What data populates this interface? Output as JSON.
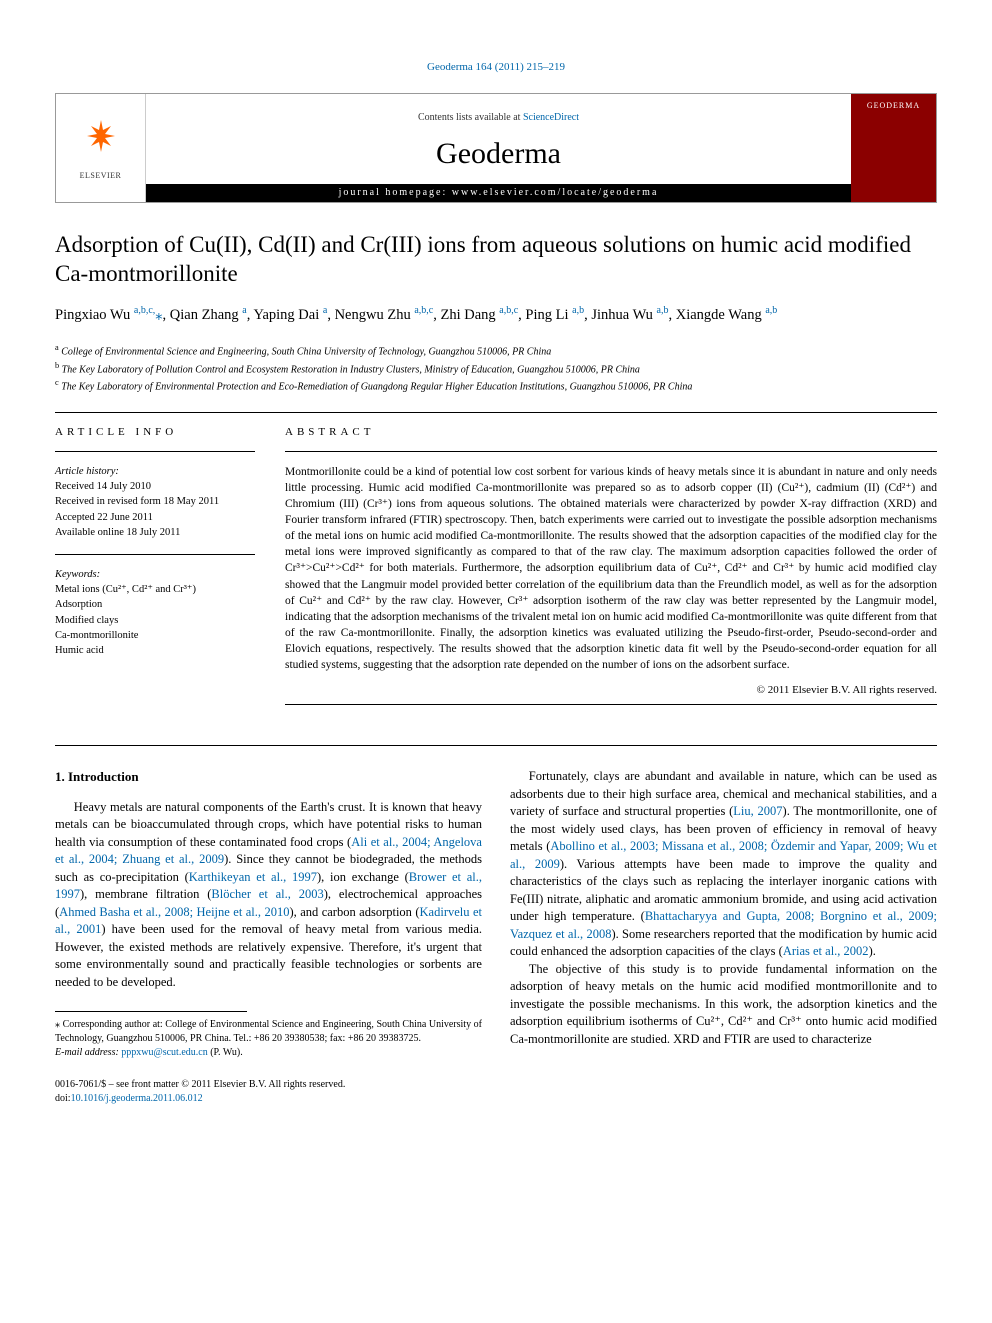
{
  "topLink": {
    "text": "Geoderma 164 (2011) 215–219",
    "href": "#"
  },
  "masthead": {
    "elsevier": "ELSEVIER",
    "contentsPrefix": "Contents lists available at ",
    "contentsLinkText": "ScienceDirect",
    "journal": "Geoderma",
    "homepageLabel": "journal homepage: www.elsevier.com/locate/geoderma",
    "coverLabel": "GEODERMA"
  },
  "title": "Adsorption of Cu(II), Cd(II) and Cr(III) ions from aqueous solutions on humic acid modified Ca-montmorillonite",
  "authorsHtml": "Pingxiao Wu <sup><a href=\"#\">a,b,c,</a></sup><a href=\"#\">⁎</a>, Qian Zhang <sup><a href=\"#\">a</a></sup>, Yaping Dai <sup><a href=\"#\">a</a></sup>, Nengwu Zhu <sup><a href=\"#\">a,b,c</a></sup>, Zhi Dang <sup><a href=\"#\">a,b,c</a></sup>, Ping Li <sup><a href=\"#\">a,b</a></sup>, Jinhua Wu <sup><a href=\"#\">a,b</a></sup>, Xiangde Wang <sup><a href=\"#\">a,b</a></sup>",
  "affiliations": [
    {
      "sup": "a",
      "text": "College of Environmental Science and Engineering, South China University of Technology, Guangzhou 510006, PR China"
    },
    {
      "sup": "b",
      "text": "The Key Laboratory of Pollution Control and Ecosystem Restoration in Industry Clusters, Ministry of Education, Guangzhou 510006, PR China"
    },
    {
      "sup": "c",
      "text": "The Key Laboratory of Environmental Protection and Eco-Remediation of Guangdong Regular Higher Education Institutions, Guangzhou 510006, PR China"
    }
  ],
  "articleInfo": {
    "label": "ARTICLE INFO",
    "historyHeading": "Article history:",
    "history": [
      "Received 14 July 2010",
      "Received in revised form 18 May 2011",
      "Accepted 22 June 2011",
      "Available online 18 July 2011"
    ],
    "keywordsHeading": "Keywords:",
    "keywords": [
      "Metal ions (Cu²⁺, Cd²⁺ and Cr³⁺)",
      "Adsorption",
      "Modified clays",
      "Ca-montmorillonite",
      "Humic acid"
    ]
  },
  "abstract": {
    "label": "ABSTRACT",
    "text": "Montmorillonite could be a kind of potential low cost sorbent for various kinds of heavy metals since it is abundant in nature and only needs little processing. Humic acid modified Ca-montmorillonite was prepared so as to adsorb copper (II) (Cu²⁺), cadmium (II) (Cd²⁺) and Chromium (III) (Cr³⁺) ions from aqueous solutions. The obtained materials were characterized by powder X-ray diffraction (XRD) and Fourier transform infrared (FTIR) spectroscopy. Then, batch experiments were carried out to investigate the possible adsorption mechanisms of the metal ions on humic acid modified Ca-montmorillonite. The results showed that the adsorption capacities of the modified clay for the metal ions were improved significantly as compared to that of the raw clay. The maximum adsorption capacities followed the order of Cr³⁺>Cu²⁺>Cd²⁺ for both materials. Furthermore, the adsorption equilibrium data of Cu²⁺, Cd²⁺ and Cr³⁺ by humic acid modified clay showed that the Langmuir model provided better correlation of the equilibrium data than the Freundlich model, as well as for the adsorption of Cu²⁺ and Cd²⁺ by the raw clay. However, Cr³⁺ adsorption isotherm of the raw clay was better represented by the Langmuir model, indicating that the adsorption mechanisms of the trivalent metal ion on humic acid modified Ca-montmorillonite was quite different from that of the raw Ca-montmorillonite. Finally, the adsorption kinetics was evaluated utilizing the Pseudo-first-order, Pseudo-second-order and Elovich equations, respectively. The results showed that the adsorption kinetic data fit well by the Pseudo-second-order equation for all studied systems, suggesting that the adsorption rate depended on the number of ions on the adsorbent surface.",
    "copyright": "© 2011 Elsevier B.V. All rights reserved."
  },
  "intro": {
    "heading": "1. Introduction",
    "leftHtml": "Heavy metals are natural components of the Earth's crust. It is known that heavy metals can be bioaccumulated through crops, which have potential risks to human health via consumption of these contaminated food crops (<a href=\"#\">Ali et al., 2004; Angelova et al., 2004; Zhuang et al., 2009</a>). Since they cannot be biodegraded, the methods such as co-precipitation (<a href=\"#\">Karthikeyan et al., 1997</a>), ion exchange (<a href=\"#\">Brower et al., 1997</a>), membrane filtration (<a href=\"#\">Blöcher et al., 2003</a>), electrochemical approaches (<a href=\"#\">Ahmed Basha et al., 2008; Heijne et al., 2010</a>), and carbon adsorption (<a href=\"#\">Kadirvelu et al., 2001</a>) have been used for the removal of heavy metal from various media. However, the existed methods are relatively expensive. Therefore, it's urgent that some environmentally sound and practically feasible technologies or sorbents are needed to be developed.",
    "right1Html": "Fortunately, clays are abundant and available in nature, which can be used as adsorbents due to their high surface area, chemical and mechanical stabilities, and a variety of surface and structural properties (<a href=\"#\">Liu, 2007</a>). The montmorillonite, one of the most widely used clays, has been proven of efficiency in removal of heavy metals (<a href=\"#\">Abollino et al., 2003; Missana et al., 2008; Özdemir and Yapar, 2009; Wu et al., 2009</a>). Various attempts have been made to improve the quality and characteristics of the clays such as replacing the interlayer inorganic cations with Fe(III) nitrate, aliphatic and aromatic ammonium bromide, and using acid activation under high temperature. (<a href=\"#\">Bhattacharyya and Gupta, 2008; Borgnino et al., 2009; Vazquez et al., 2008</a>). Some researchers reported that the modification by humic acid could enhanced the adsorption capacities of the clays (<a href=\"#\">Arias et al., 2002</a>).",
    "right2Html": "The objective of this study is to provide fundamental information on the adsorption of heavy metals on the humic acid modified montmorillonite and to investigate the possible mechanisms. In this work, the adsorption kinetics and the adsorption equilibrium isotherms of Cu²⁺, Cd²⁺ and Cr³⁺ onto humic acid modified Ca-montmorillonite are studied. XRD and FTIR are used to characterize"
  },
  "footnote": {
    "corresponding": "⁎ Corresponding author at: College of Environmental Science and Engineering, South China University of Technology, Guangzhou 510006, PR China. Tel.: +86 20 39380538; fax: +86 20 39383725.",
    "emailLabel": "E-mail address: ",
    "email": "pppxwu@scut.edu.cn",
    "emailSuffix": " (P. Wu)."
  },
  "footer": {
    "line1": "0016-7061/$ – see front matter © 2011 Elsevier B.V. All rights reserved.",
    "doiLabel": "doi:",
    "doi": "10.1016/j.geoderma.2011.06.012"
  }
}
